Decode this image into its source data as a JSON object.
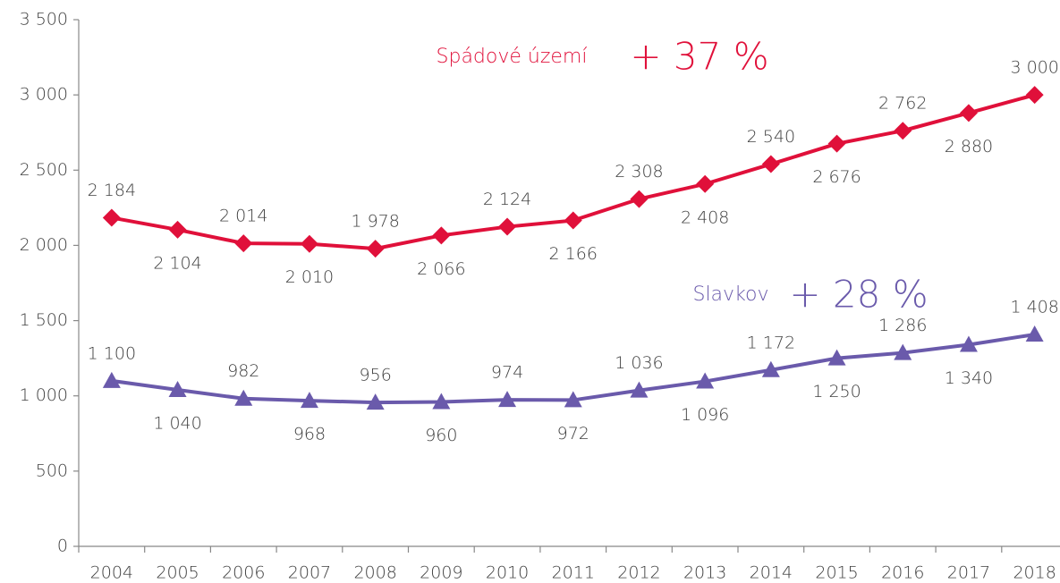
{
  "chart_data": {
    "type": "line",
    "categories": [
      "2004",
      "2005",
      "2006",
      "2007",
      "2008",
      "2009",
      "2010",
      "2011",
      "2012",
      "2013",
      "2014",
      "2015",
      "2016",
      "2017",
      "2018"
    ],
    "series": [
      {
        "name": "Spádové území",
        "color": "#e0103a",
        "marker": "diamond",
        "values": [
          2184,
          2104,
          2014,
          2010,
          1978,
          2066,
          2124,
          2166,
          2308,
          2408,
          2540,
          2676,
          2762,
          2880,
          3000
        ],
        "value_labels": [
          "2 184",
          "2 104",
          "2 014",
          "2 010",
          "1 978",
          "2 066",
          "2 124",
          "2 166",
          "2 308",
          "2 408",
          "2 540",
          "2 676",
          "2 762",
          "2 880",
          "3 000"
        ]
      },
      {
        "name": "Slavkov",
        "color": "#6a5aab",
        "marker": "triangle",
        "values": [
          1100,
          1040,
          982,
          968,
          956,
          960,
          974,
          972,
          1036,
          1096,
          1172,
          1250,
          1286,
          1340,
          1408
        ],
        "value_labels": [
          "1 100",
          "1 040",
          "982",
          "968",
          "956",
          "960",
          "974",
          "972",
          "1 036",
          "1 096",
          "1 172",
          "1 250",
          "1 286",
          "1 340",
          "1 408"
        ]
      }
    ],
    "annotations": [
      "+ 37 %",
      "+ 28 %"
    ],
    "ylim": [
      0,
      3500
    ],
    "yticks": [
      0,
      500,
      {
        "value": 1000,
        "label": "1 000"
      },
      {
        "value": 1500,
        "label": "1 500"
      },
      {
        "value": 2000,
        "label": "2 000"
      },
      {
        "value": 2500,
        "label": "2 500"
      },
      {
        "value": 3000,
        "label": "3 000"
      },
      {
        "value": 3500,
        "label": "3 500"
      }
    ],
    "grid": false
  }
}
